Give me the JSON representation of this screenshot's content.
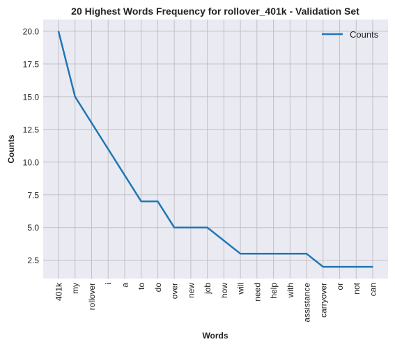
{
  "chart_data": {
    "type": "line",
    "title": "20 Highest Words Frequency for rollover_401k - Validation Set",
    "xlabel": "Words",
    "ylabel": "Counts",
    "categories": [
      "401k",
      "my",
      "rollover",
      "i",
      "a",
      "to",
      "do",
      "over",
      "new",
      "job",
      "how",
      "will",
      "need",
      "help",
      "with",
      "assistance",
      "carryover",
      "or",
      "not",
      "can"
    ],
    "series": [
      {
        "name": "Counts",
        "values": [
          20,
          15,
          13,
          11,
          9,
          7,
          7,
          5,
          5,
          5,
          4,
          3,
          3,
          3,
          3,
          3,
          2,
          2,
          2,
          2
        ]
      }
    ],
    "yticks": [
      "2.5",
      "5.0",
      "7.5",
      "10.0",
      "12.5",
      "15.0",
      "17.5",
      "20.0"
    ],
    "ylim": [
      1.1,
      20.9
    ],
    "grid": true,
    "legend_position": "top-right",
    "colors": {
      "background": "#eaeaf2",
      "grid": "#c0c0c4",
      "line": "#1f77b4",
      "text": "#222222"
    }
  }
}
